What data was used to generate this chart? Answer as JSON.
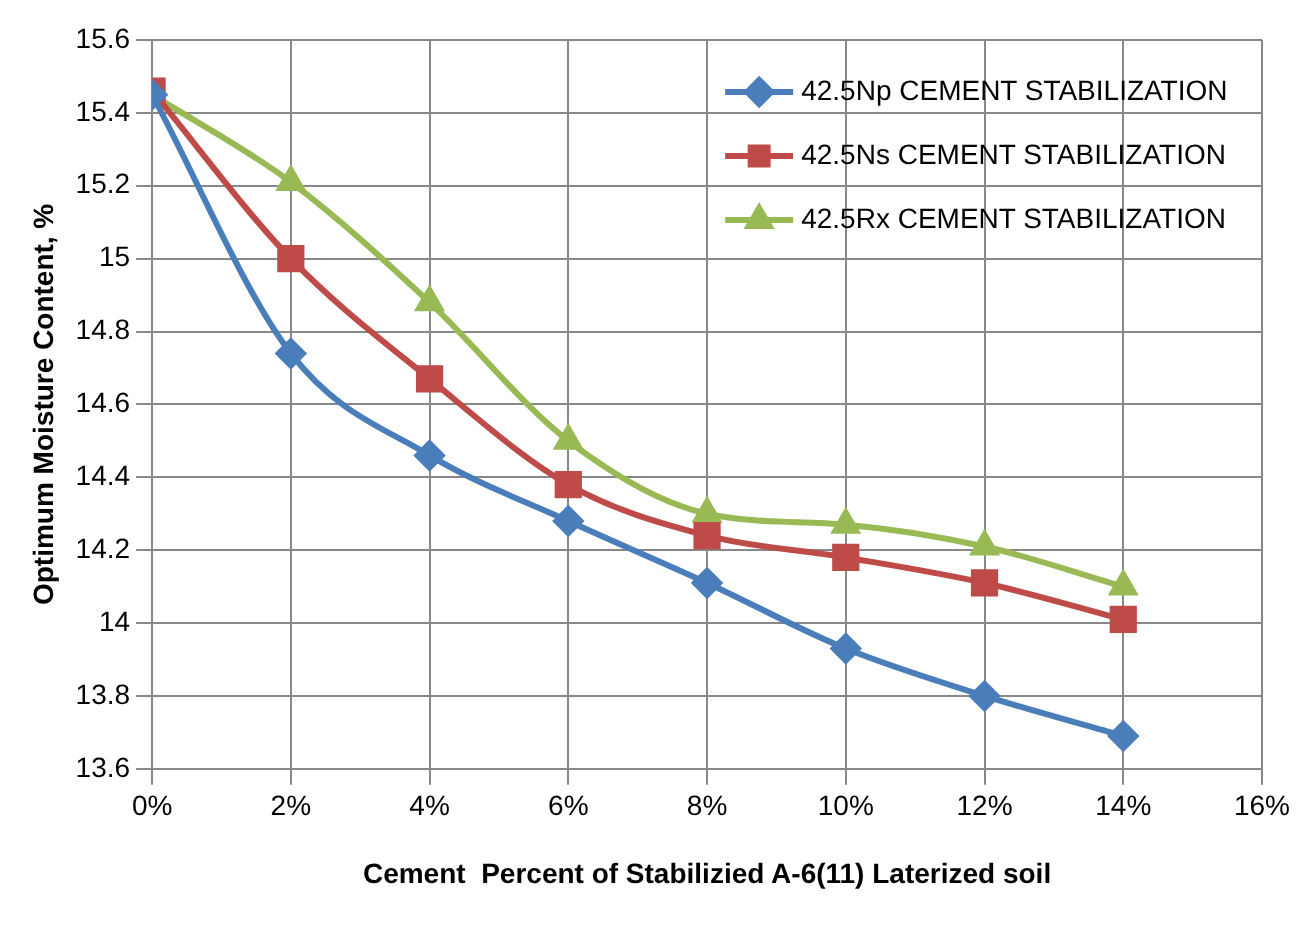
{
  "chart_data": {
    "type": "line",
    "xlabel": "Cement  Percent of Stabilizied A-6(11) Laterized soil",
    "ylabel": "Optimum Moisture Content, %",
    "x": [
      0,
      2,
      4,
      6,
      8,
      10,
      12,
      14
    ],
    "series": [
      {
        "name": "42.5Np CEMENT STABILIZATION",
        "color": "#4a7ebb",
        "marker": "diamond",
        "values": [
          15.45,
          14.74,
          14.46,
          14.28,
          14.11,
          13.93,
          13.8,
          13.69
        ]
      },
      {
        "name": "42.5Ns CEMENT STABILIZATION",
        "color": "#be4b48",
        "marker": "square",
        "values": [
          15.46,
          15.0,
          14.67,
          14.38,
          14.24,
          14.18,
          14.11,
          14.01
        ]
      },
      {
        "name": "42.5Rx CEMENT STABILIZATION",
        "color": "#98b954",
        "marker": "triangle",
        "values": [
          15.45,
          15.21,
          14.88,
          14.5,
          14.3,
          14.27,
          14.21,
          14.1
        ]
      }
    ],
    "xlim": [
      0,
      16
    ],
    "xticks": [
      {
        "value": 0,
        "label": "0%"
      },
      {
        "value": 2,
        "label": "2%"
      },
      {
        "value": 4,
        "label": "4%"
      },
      {
        "value": 6,
        "label": "6%"
      },
      {
        "value": 8,
        "label": "8%"
      },
      {
        "value": 10,
        "label": "10%"
      },
      {
        "value": 12,
        "label": "12%"
      },
      {
        "value": 14,
        "label": "14%"
      },
      {
        "value": 16,
        "label": "16%"
      }
    ],
    "ylim": [
      13.6,
      15.6
    ],
    "yticks": [
      13.6,
      13.8,
      14,
      14.2,
      14.4,
      14.6,
      14.8,
      15,
      15.2,
      15.4,
      15.6
    ],
    "grid": true,
    "legend": "top right",
    "line_style": "solid"
  }
}
